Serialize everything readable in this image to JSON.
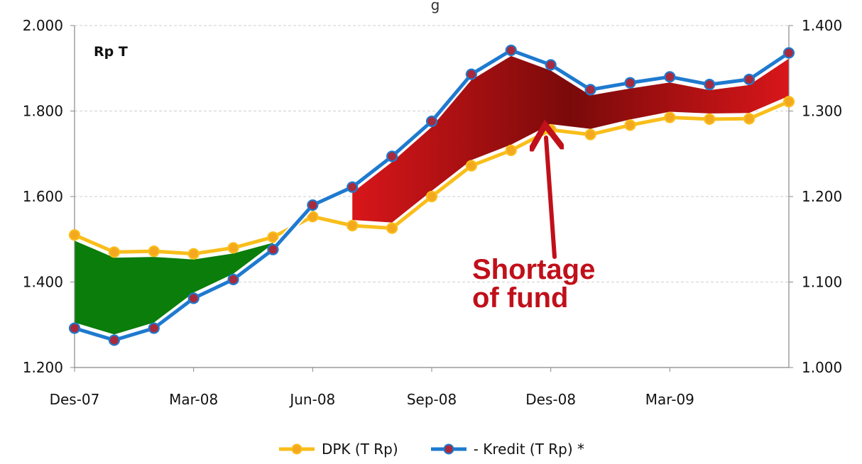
{
  "chart_data": {
    "type": "line",
    "title": "",
    "title_fragment": "g",
    "unit_label": "Rp T",
    "categories": [
      "Des-07",
      "Jan-08",
      "Feb-08",
      "Mar-08",
      "Apr-08",
      "May-08",
      "Jun-08",
      "Jul-08",
      "Aug-08",
      "Sep-08",
      "Oct-08",
      "Nov-08",
      "Des-08",
      "Jan-09",
      "Feb-09",
      "Mar-09",
      "Apr-09",
      "May-09",
      "Jun-09"
    ],
    "x_tick_labels": [
      "Des-07",
      "Mar-08",
      "Jun-08",
      "Sep-08",
      "Des-08",
      "Mar-09"
    ],
    "left_axis": {
      "min": 1200,
      "max": 2000,
      "ticks": [
        "1.200",
        "1.400",
        "1.600",
        "1.800",
        "2.000"
      ]
    },
    "right_axis": {
      "min": 1000,
      "max": 1400,
      "ticks": [
        "1.000",
        "1.100",
        "1.200",
        "1.300",
        "1.400"
      ]
    },
    "series": [
      {
        "name": "DPK (T Rp)",
        "axis": "left",
        "color": "#F9BE1B",
        "marker_color": "#F4A81F",
        "values": [
          1510,
          1470,
          1472,
          1466,
          1480,
          1505,
          1553,
          1532,
          1526,
          1600,
          1672,
          1708,
          1756,
          1745,
          1767,
          1785,
          1781,
          1782,
          1822
        ]
      },
      {
        "name": "- Kredit (T Rp) *",
        "axis": "right",
        "color": "#1E7ACF",
        "marker_color": "#A82A3C",
        "values": [
          1046,
          1032,
          1046,
          1081,
          1103,
          1138,
          1190,
          1211,
          1247,
          1288,
          1343,
          1371,
          1354,
          1325,
          1333,
          1340,
          1331,
          1337,
          1368
        ]
      }
    ],
    "annotation": {
      "line1": "Shortage",
      "line2": "of fund",
      "color": "#C0101A"
    },
    "fill_colors": {
      "surplus": "#0A7D0A",
      "shortage_dark": "#7A0A0A",
      "shortage_light": "#D8161A"
    },
    "grid": true,
    "legend_position": "bottom"
  }
}
